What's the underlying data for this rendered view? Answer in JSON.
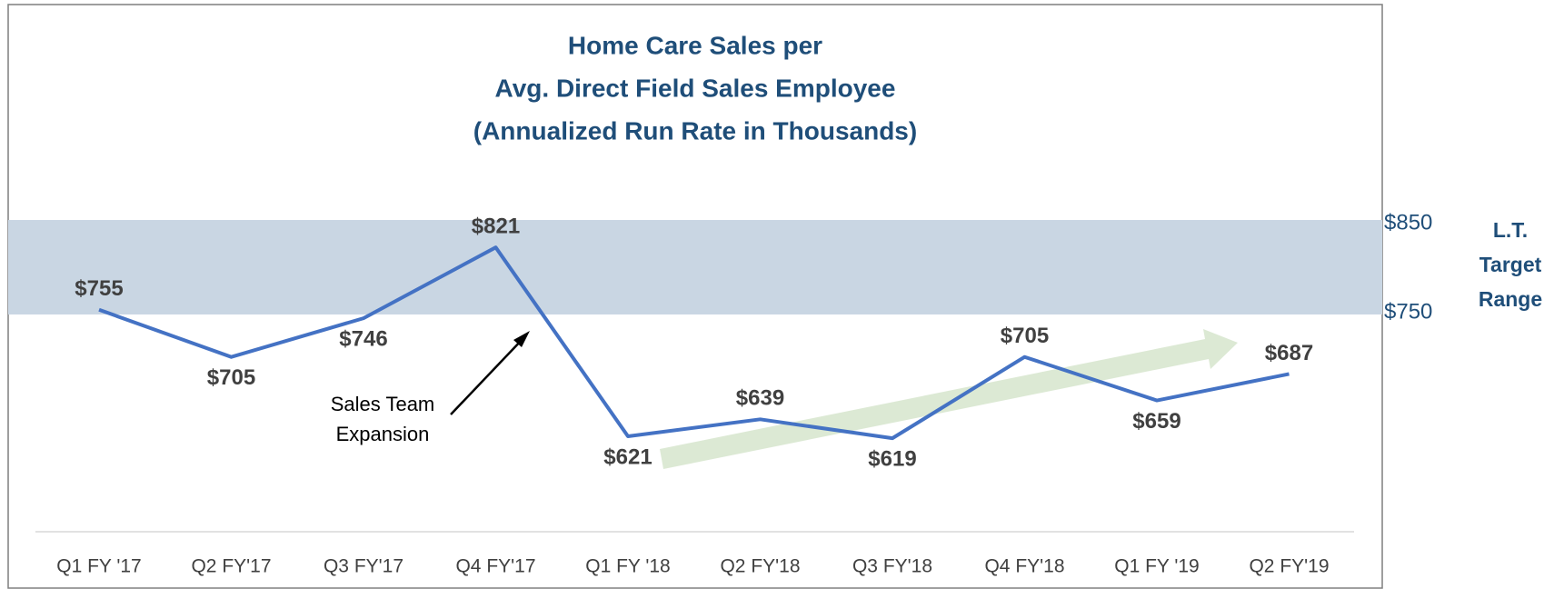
{
  "chart_data": {
    "type": "line",
    "title": [
      "Home Care Sales per",
      "Avg. Direct Field Sales Employee",
      "(Annualized Run Rate in Thousands)"
    ],
    "categories": [
      "Q1 FY '17",
      "Q2 FY'17",
      "Q3 FY'17",
      "Q4 FY'17",
      "Q1 FY '18",
      "Q2 FY'18",
      "Q3 FY'18",
      "Q4 FY'18",
      "Q1 FY '19",
      "Q2 FY'19"
    ],
    "values": [
      755,
      705,
      746,
      821,
      621,
      639,
      619,
      705,
      659,
      687
    ],
    "value_labels": [
      "$755",
      "$705",
      "$746",
      "$821",
      "$621",
      "$639",
      "$619",
      "$705",
      "$659",
      "$687"
    ],
    "color": "#4472c4",
    "ylim": [
      520,
      1080
    ],
    "target_range": {
      "low": {
        "value": 750,
        "label": "$750"
      },
      "high": {
        "value": 850,
        "label": "$850"
      },
      "label": "L.T. Target Range",
      "color": "#c9d6e3"
    },
    "annotation": "Sales Team Expansion"
  }
}
